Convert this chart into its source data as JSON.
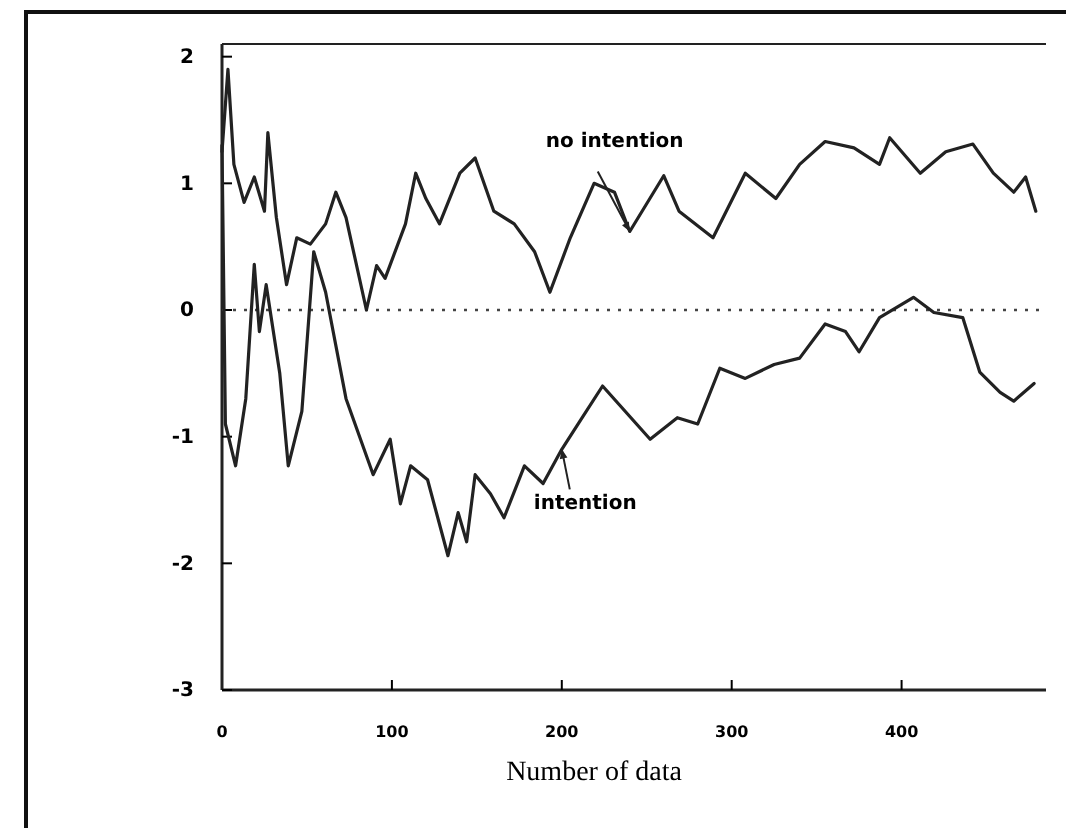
{
  "chart_data": {
    "type": "line",
    "xlabel": "Number of data",
    "xlim": [
      0,
      485
    ],
    "ylim": [
      -3,
      2.1
    ],
    "xticks": [
      0,
      100,
      200,
      300,
      400
    ],
    "yticks": [
      2,
      1,
      0,
      -1,
      -2,
      -3
    ],
    "grid": false,
    "marker": "none",
    "line_style": "solid",
    "ref_lines": [
      {
        "axis": "y",
        "value": 0,
        "line_style": "dotted",
        "color": "#444444"
      }
    ],
    "annotations": [
      {
        "text": "no intention",
        "x": 240,
        "y": 0.62
      },
      {
        "text": "intention",
        "x": 200,
        "y": -1.1
      }
    ],
    "series": [
      {
        "color": "#222222",
        "x": [
          0,
          3.5,
          7,
          13,
          19,
          25,
          27,
          32,
          38,
          44,
          52,
          61,
          67,
          73,
          85,
          91,
          96,
          108,
          114,
          120,
          128,
          140,
          149,
          160,
          172,
          184,
          193,
          205,
          219,
          231,
          240,
          260,
          269,
          289,
          308,
          326,
          340,
          355,
          372,
          387,
          393,
          411,
          426,
          442,
          454,
          466,
          473,
          479
        ],
        "values": [
          1.25,
          1.9,
          1.15,
          0.85,
          1.05,
          0.78,
          1.4,
          0.73,
          0.2,
          0.57,
          0.52,
          0.68,
          0.93,
          0.73,
          0,
          0.35,
          0.25,
          0.68,
          1.08,
          0.88,
          0.68,
          1.08,
          1.2,
          0.78,
          0.68,
          0.46,
          0.14,
          0.57,
          1.0,
          0.93,
          0.62,
          1.06,
          0.78,
          0.57,
          1.08,
          0.88,
          1.15,
          1.33,
          1.28,
          1.15,
          1.36,
          1.08,
          1.25,
          1.31,
          1.08,
          0.93,
          1.05,
          0.78
        ]
      },
      {
        "color": "#222222",
        "x": [
          0,
          2,
          8,
          14,
          19,
          22,
          26,
          34,
          39,
          47,
          54,
          61,
          73,
          89,
          99,
          105,
          111,
          121,
          133,
          139,
          144,
          149,
          158,
          166,
          178,
          189,
          200,
          212,
          224,
          252,
          268,
          280,
          293,
          308,
          325,
          340,
          355,
          367,
          375,
          387,
          407,
          419,
          436,
          446,
          458,
          466,
          478
        ],
        "values": [
          1.3,
          -0.9,
          -1.23,
          -0.7,
          0.36,
          -0.17,
          0.2,
          -0.5,
          -1.23,
          -0.8,
          0.46,
          0.14,
          -0.7,
          -1.3,
          -1.02,
          -1.53,
          -1.23,
          -1.34,
          -1.94,
          -1.6,
          -1.83,
          -1.3,
          -1.45,
          -1.64,
          -1.23,
          -1.37,
          -1.1,
          -0.85,
          -0.6,
          -1.02,
          -0.85,
          -0.9,
          -0.46,
          -0.54,
          -0.43,
          -0.38,
          -0.11,
          -0.17,
          -0.33,
          -0.06,
          0.1,
          -0.02,
          -0.06,
          -0.49,
          -0.65,
          -0.72,
          -0.58
        ]
      }
    ]
  }
}
